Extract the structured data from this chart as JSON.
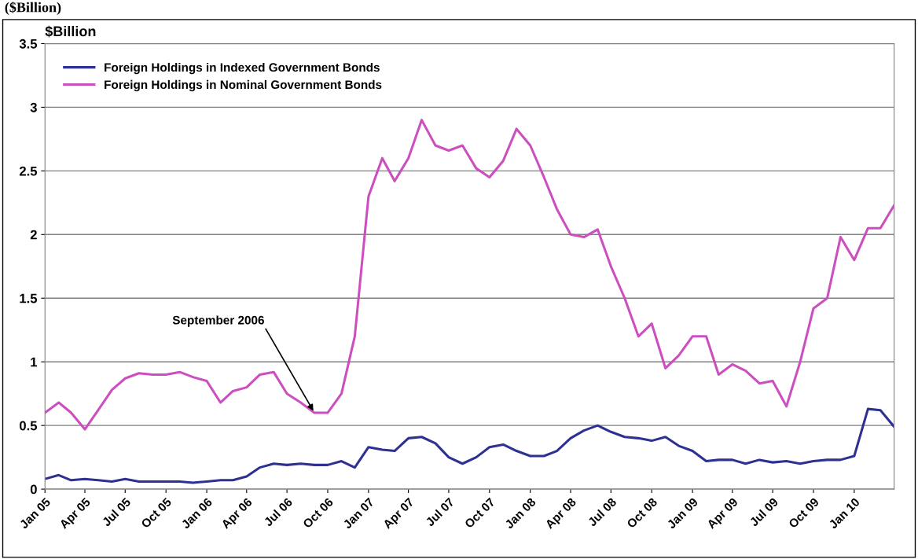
{
  "chart_data": {
    "type": "line",
    "title": "($Billion)",
    "ylabel": "$Billion",
    "x": [
      "2005-01",
      "2005-02",
      "2005-03",
      "2005-04",
      "2005-05",
      "2005-06",
      "2005-07",
      "2005-08",
      "2005-09",
      "2005-10",
      "2005-11",
      "2005-12",
      "2006-01",
      "2006-02",
      "2006-03",
      "2006-04",
      "2006-05",
      "2006-06",
      "2006-07",
      "2006-08",
      "2006-09",
      "2006-10",
      "2006-11",
      "2006-12",
      "2007-01",
      "2007-02",
      "2007-03",
      "2007-04",
      "2007-05",
      "2007-06",
      "2007-07",
      "2007-08",
      "2007-09",
      "2007-10",
      "2007-11",
      "2007-12",
      "2008-01",
      "2008-02",
      "2008-03",
      "2008-04",
      "2008-05",
      "2008-06",
      "2008-07",
      "2008-08",
      "2008-09",
      "2008-10",
      "2008-11",
      "2008-12",
      "2009-01",
      "2009-02",
      "2009-03",
      "2009-04",
      "2009-05",
      "2009-06",
      "2009-07",
      "2009-08",
      "2009-09",
      "2009-10",
      "2009-11",
      "2009-12",
      "2010-01",
      "2010-02",
      "2010-03",
      "2010-04"
    ],
    "series": [
      {
        "name": "Foreign Holdings in Indexed Government Bonds",
        "color": "#2e3192",
        "values": [
          0.08,
          0.11,
          0.07,
          0.08,
          0.07,
          0.06,
          0.08,
          0.06,
          0.06,
          0.06,
          0.06,
          0.05,
          0.06,
          0.07,
          0.07,
          0.1,
          0.17,
          0.2,
          0.19,
          0.2,
          0.19,
          0.19,
          0.22,
          0.17,
          0.33,
          0.31,
          0.3,
          0.4,
          0.41,
          0.36,
          0.25,
          0.2,
          0.25,
          0.33,
          0.35,
          0.3,
          0.26,
          0.26,
          0.3,
          0.4,
          0.46,
          0.5,
          0.45,
          0.41,
          0.4,
          0.38,
          0.41,
          0.34,
          0.3,
          0.22,
          0.23,
          0.23,
          0.2,
          0.23,
          0.21,
          0.22,
          0.2,
          0.22,
          0.23,
          0.23,
          0.26,
          0.63,
          0.62,
          0.49
        ]
      },
      {
        "name": "Foreign Holdings in Nominal Government Bonds",
        "color": "#cc4fc0",
        "values": [
          0.6,
          0.68,
          0.6,
          0.47,
          0.62,
          0.78,
          0.87,
          0.91,
          0.9,
          0.9,
          0.92,
          0.88,
          0.85,
          0.68,
          0.77,
          0.8,
          0.9,
          0.92,
          0.75,
          0.68,
          0.6,
          0.6,
          0.75,
          1.2,
          2.3,
          2.6,
          2.42,
          2.6,
          2.9,
          2.7,
          2.66,
          2.7,
          2.52,
          2.45,
          2.58,
          2.83,
          2.7,
          2.45,
          2.2,
          2.0,
          1.98,
          2.04,
          1.75,
          1.5,
          1.2,
          1.3,
          0.95,
          1.05,
          1.2,
          1.2,
          0.9,
          0.98,
          0.93,
          0.83,
          0.85,
          0.65,
          1.0,
          1.42,
          1.5,
          1.98,
          1.8,
          2.05,
          2.05,
          2.23
        ]
      }
    ],
    "xlim": [
      "2005-01",
      "2010-04"
    ],
    "xticks": [
      {
        "value": "2005-01",
        "label": "Jan 05"
      },
      {
        "value": "2005-04",
        "label": "Apr 05"
      },
      {
        "value": "2005-07",
        "label": "Jul 05"
      },
      {
        "value": "2005-10",
        "label": "Oct 05"
      },
      {
        "value": "2006-01",
        "label": "Jan 06"
      },
      {
        "value": "2006-04",
        "label": "Apr 06"
      },
      {
        "value": "2006-07",
        "label": "Jul 06"
      },
      {
        "value": "2006-10",
        "label": "Oct 06"
      },
      {
        "value": "2007-01",
        "label": "Jan 07"
      },
      {
        "value": "2007-04",
        "label": "Apr 07"
      },
      {
        "value": "2007-07",
        "label": "Jul 07"
      },
      {
        "value": "2007-10",
        "label": "Oct 07"
      },
      {
        "value": "2008-01",
        "label": "Jan 08"
      },
      {
        "value": "2008-04",
        "label": "Apr 08"
      },
      {
        "value": "2008-07",
        "label": "Jul 08"
      },
      {
        "value": "2008-10",
        "label": "Oct 08"
      },
      {
        "value": "2009-01",
        "label": "Jan 09"
      },
      {
        "value": "2009-04",
        "label": "Apr 09"
      },
      {
        "value": "2009-07",
        "label": "Jul 09"
      },
      {
        "value": "2009-10",
        "label": "Oct 09"
      },
      {
        "value": "2010-01",
        "label": "Jan 10"
      }
    ],
    "ylim": [
      0,
      3.5
    ],
    "yticks": [
      0,
      0.5,
      1,
      1.5,
      2,
      2.5,
      3,
      3.5
    ],
    "grid": "y",
    "legend": "top left",
    "annotations": [
      {
        "text": "September 2006",
        "x": "2006-09",
        "y": 0.6
      }
    ]
  }
}
